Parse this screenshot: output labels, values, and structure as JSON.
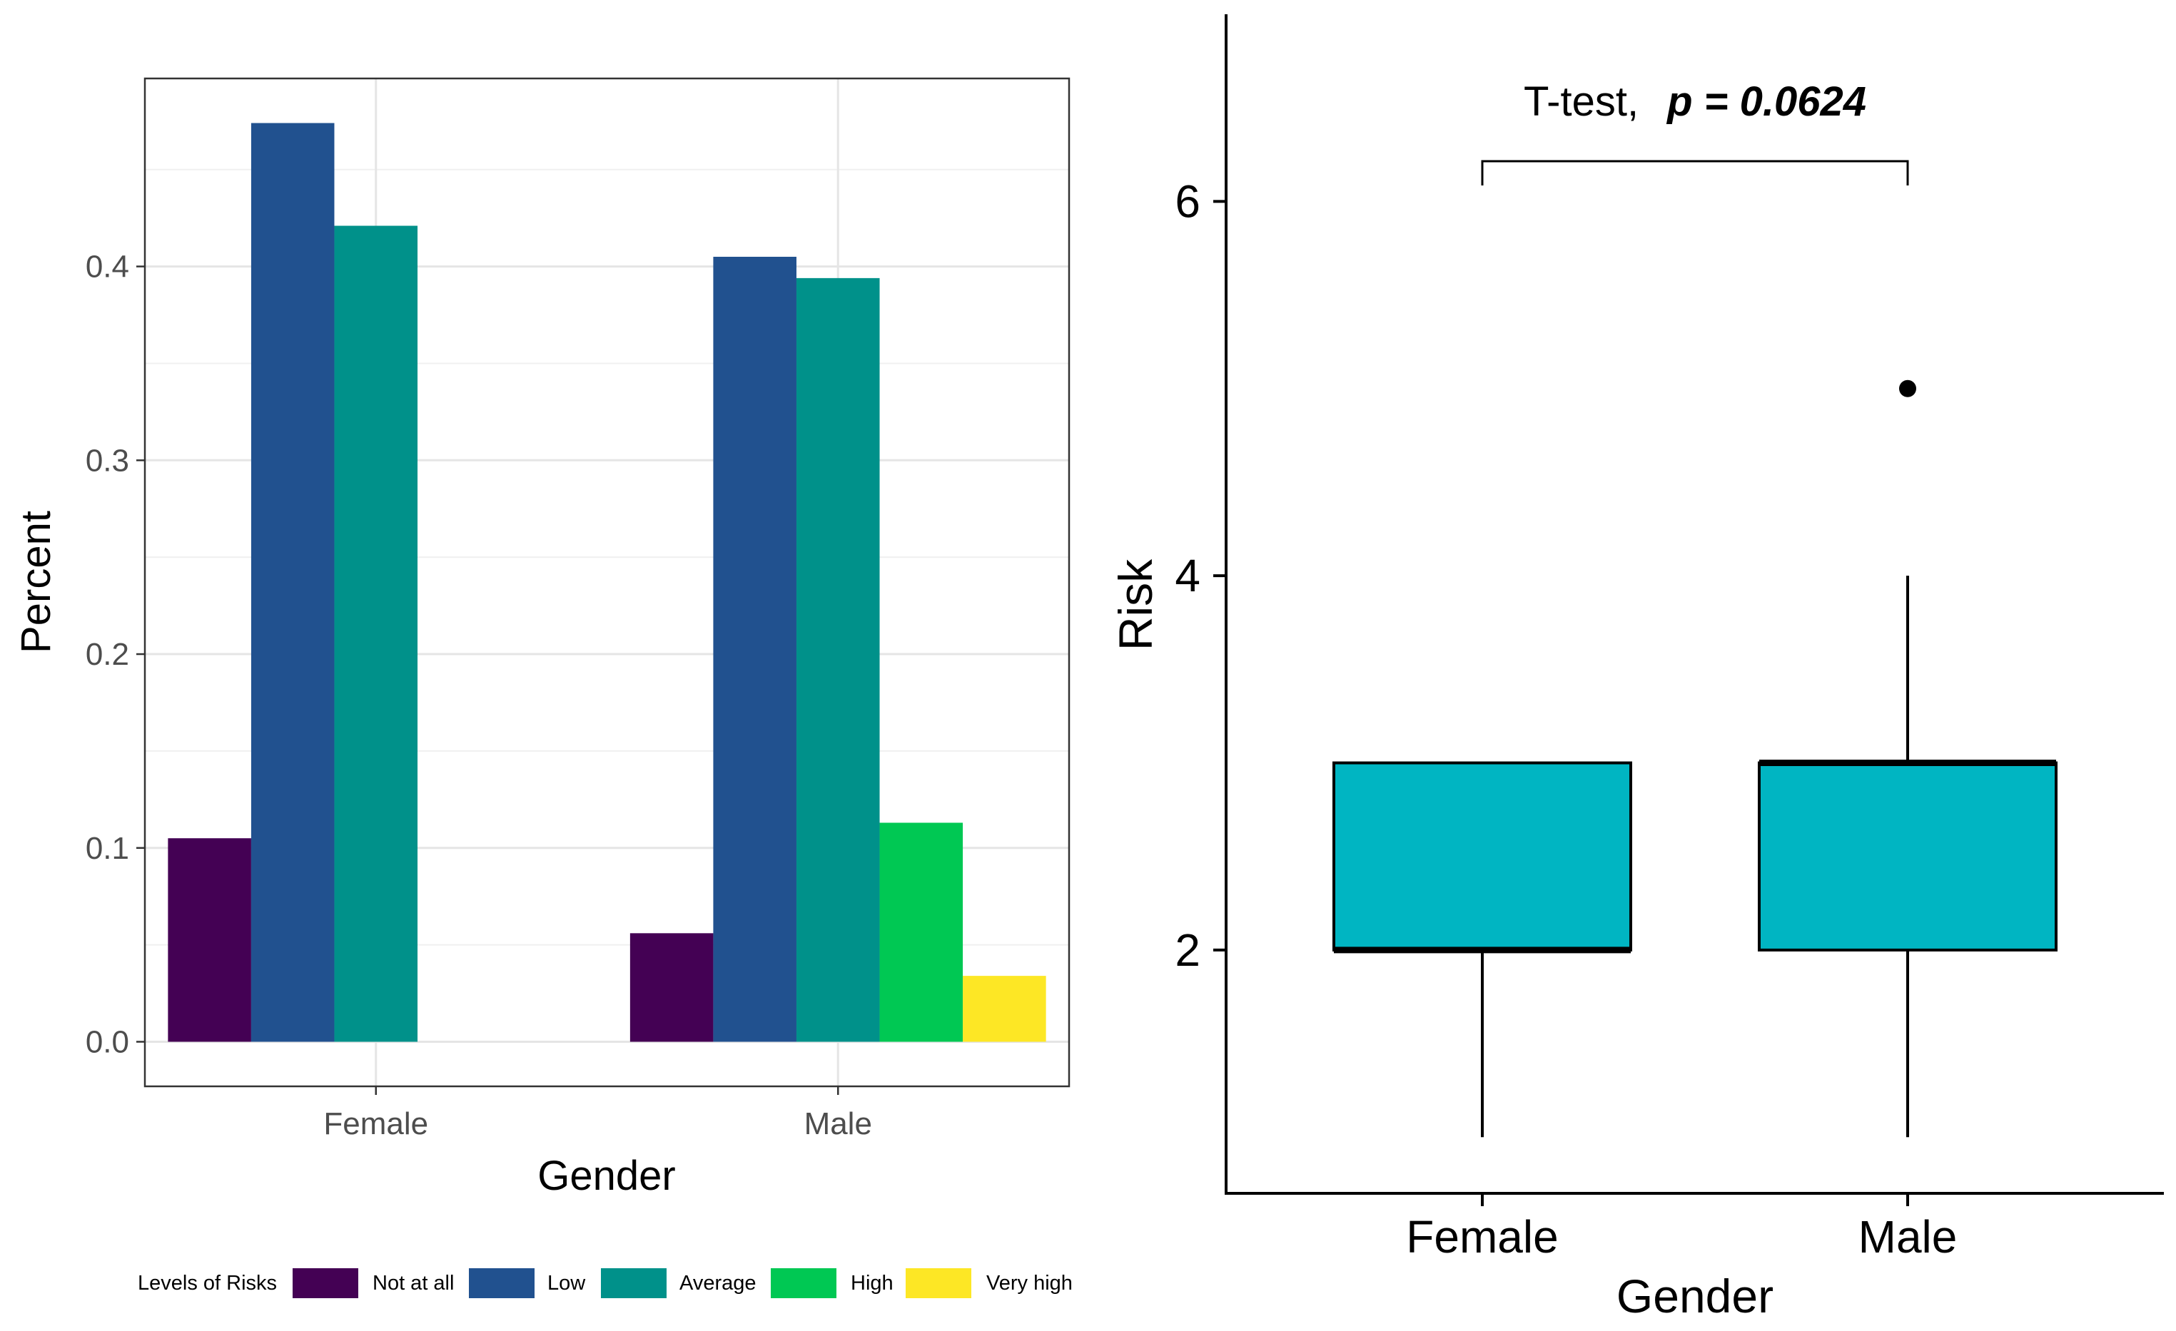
{
  "chart_data": [
    {
      "type": "bar",
      "categories": [
        "Female",
        "Male"
      ],
      "series": [
        {
          "name": "Not at all",
          "color": "#440154",
          "values": [
            0.105,
            0.056
          ]
        },
        {
          "name": "Low",
          "color": "#21518F",
          "values": [
            0.474,
            0.405
          ]
        },
        {
          "name": "Average",
          "color": "#00918A",
          "values": [
            0.421,
            0.394
          ]
        },
        {
          "name": "High",
          "color": "#00C853",
          "values": [
            null,
            0.113
          ]
        },
        {
          "name": "Very high",
          "color": "#FDE725",
          "values": [
            null,
            0.034
          ]
        }
      ],
      "xlabel": "Gender",
      "ylabel": "Percent",
      "ylim": [
        -0.023,
        0.497
      ],
      "yticks": [
        "0.0",
        "0.1",
        "0.2",
        "0.3",
        "0.4"
      ],
      "legend_title": "Levels of Risks",
      "legend_position": "bottom",
      "grid": true
    },
    {
      "type": "box",
      "categories": [
        "Female",
        "Male"
      ],
      "boxes": [
        {
          "name": "Female",
          "whisker_low": 1,
          "q1": 2,
          "median": 2,
          "q3": 3,
          "whisker_high": 3,
          "outliers": []
        },
        {
          "name": "Male",
          "whisker_low": 1,
          "q1": 2,
          "median": 3,
          "q3": 3,
          "whisker_high": 4,
          "outliers": [
            5
          ]
        }
      ],
      "fill_color": "#00B5C2",
      "xlabel": "Gender",
      "ylabel": "Risk",
      "ylim": [
        0.7,
        7.0
      ],
      "yticks": [
        "2",
        "4",
        "6"
      ],
      "annotation": {
        "test": "T-test,",
        "p_text": "p = 0.0624"
      },
      "grid": false
    }
  ]
}
